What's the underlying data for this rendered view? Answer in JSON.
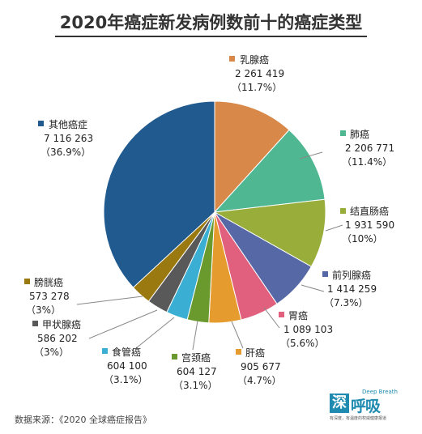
{
  "title": "2020年癌症新发病例数前十的癌症类型",
  "source": "数据来源：《2020 全球癌症报告》",
  "logo": {
    "char": "深",
    "main": "呼吸",
    "english": "Deep Breath",
    "tagline": "有深度，有温度的权威健康报道"
  },
  "colors": {
    "乳腺癌": "#d8894a",
    "肺癌": "#4fb893",
    "结直肠癌": "#99ad3b",
    "前列腺癌": "#5668a6",
    "胃癌": "#e0607e",
    "肝癌": "#e59b2d",
    "宫颈癌": "#6a9a2e",
    "食管癌": "#3aaed3",
    "甲状腺癌": "#595959",
    "膀胱癌": "#9a7a10",
    "其他癌症": "#215a8e"
  },
  "chart_data": {
    "type": "pie",
    "title": "2020年癌症新发病例数前十的癌症类型",
    "slices": [
      {
        "name": "乳腺癌",
        "value": 2261419,
        "value_label": "2 261 419",
        "pct_label": "（11.7%）"
      },
      {
        "name": "肺癌",
        "value": 2206771,
        "value_label": "2 206 771",
        "pct_label": "（11.4%）"
      },
      {
        "name": "结直肠癌",
        "value": 1931590,
        "value_label": "1 931 590",
        "pct_label": "（10%）"
      },
      {
        "name": "前列腺癌",
        "value": 1414259,
        "value_label": "1 414 259",
        "pct_label": "（7.3%）"
      },
      {
        "name": "胃癌",
        "value": 1089103,
        "value_label": "1 089 103",
        "pct_label": "（5.6%）"
      },
      {
        "name": "肝癌",
        "value": 905677,
        "value_label": "905 677",
        "pct_label": "（4.7%）"
      },
      {
        "name": "宫颈癌",
        "value": 604127,
        "value_label": "604 127",
        "pct_label": "（3.1%）"
      },
      {
        "name": "食管癌",
        "value": 604100,
        "value_label": "604 100",
        "pct_label": "（3.1%）"
      },
      {
        "name": "甲状腺癌",
        "value": 586202,
        "value_label": "586 202",
        "pct_label": "（3%）"
      },
      {
        "name": "膀胱癌",
        "value": 573278,
        "value_label": "573 278",
        "pct_label": "（3%）"
      },
      {
        "name": "其他癌症",
        "value": 7116263,
        "value_label": "7 116 263",
        "pct_label": "（36.9%）"
      }
    ]
  }
}
